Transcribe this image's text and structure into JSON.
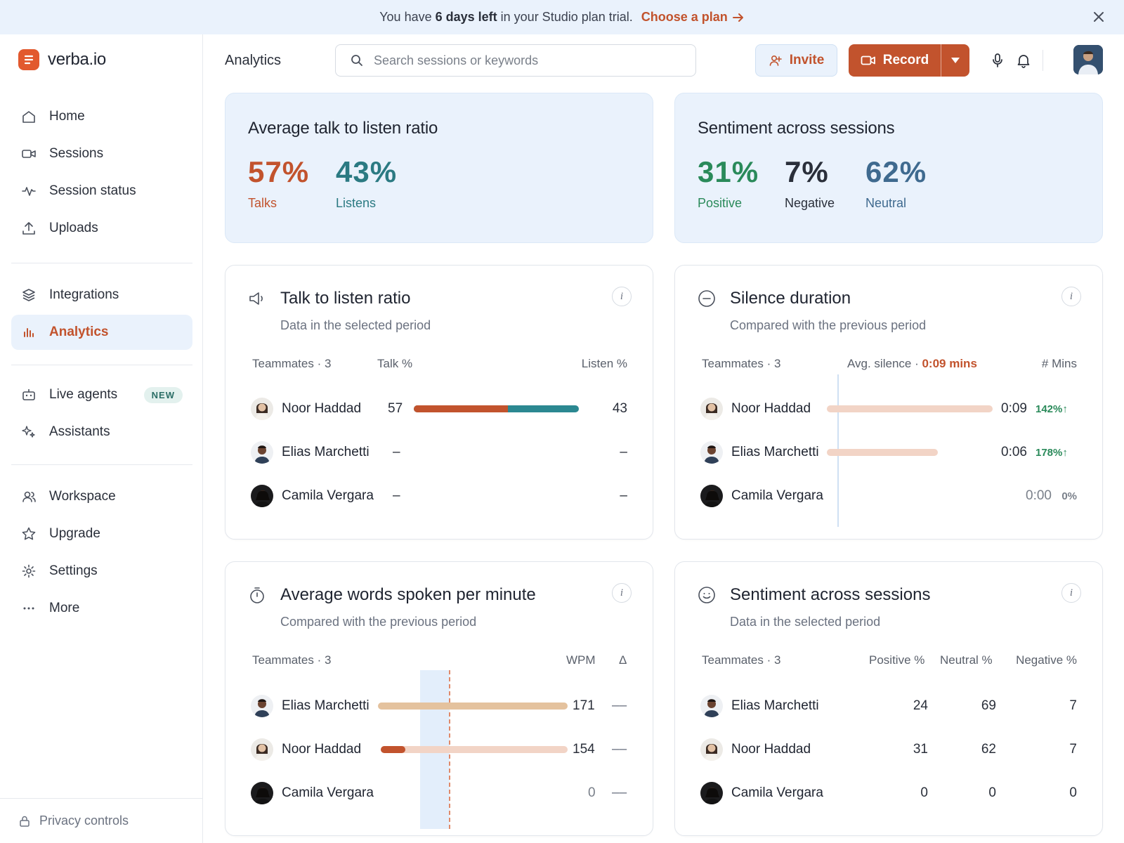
{
  "banner": {
    "pre": "You have",
    "bold": "6 days left",
    "post": "in your Studio plan trial.",
    "cta": "Choose a plan"
  },
  "app": {
    "name": "verba.io"
  },
  "sidebar": {
    "items": [
      {
        "label": "Home",
        "icon": "home-icon"
      },
      {
        "label": "Sessions",
        "icon": "video-icon"
      },
      {
        "label": "Session status",
        "icon": "activity-icon"
      },
      {
        "label": "Uploads",
        "icon": "upload-icon"
      },
      {
        "label": "Integrations",
        "icon": "layers-icon"
      },
      {
        "label": "Analytics",
        "icon": "bar-chart-icon",
        "active": true
      },
      {
        "label": "Live agents",
        "icon": "bot-icon",
        "badge": "NEW"
      },
      {
        "label": "Assistants",
        "icon": "sparkles-icon"
      },
      {
        "label": "Workspace",
        "icon": "users-icon"
      },
      {
        "label": "Upgrade",
        "icon": "star-icon"
      },
      {
        "label": "Settings",
        "icon": "gear-icon"
      },
      {
        "label": "More",
        "icon": "more-icon"
      }
    ],
    "privacy": "Privacy controls"
  },
  "header": {
    "title": "Analytics",
    "search_placeholder": "Search sessions or keywords",
    "invite": "Invite",
    "record": "Record"
  },
  "summary_talk": {
    "title": "Average talk to listen ratio",
    "talks_value": "57%",
    "talks_label": "Talks",
    "listens_value": "43%",
    "listens_label": "Listens"
  },
  "summary_sentiment": {
    "title": "Sentiment across sessions",
    "positive_value": "31%",
    "positive_label": "Positive",
    "negative_value": "7%",
    "negative_label": "Negative",
    "neutral_value": "62%",
    "neutral_label": "Neutral"
  },
  "talk_card": {
    "title": "Talk to listen ratio",
    "subtitle": "Data in the selected period",
    "col_team": "Teammates · 3",
    "col_talk": "Talk %",
    "col_listen": "Listen %",
    "rows": [
      {
        "name": "Noor Haddad",
        "talk": "57",
        "listen": "43",
        "talk_frac": 0.57
      },
      {
        "name": "Elias Marchetti",
        "talk": "–",
        "listen": "–"
      },
      {
        "name": "Camila Vergara",
        "talk": "–",
        "listen": "–"
      }
    ]
  },
  "silence_card": {
    "title": "Silence duration",
    "subtitle": "Compared with the previous period",
    "col_team": "Teammates · 3",
    "col_avg_label": "Avg. silence ·",
    "col_avg_value": "0:09 mins",
    "col_mins": "# Mins",
    "rows": [
      {
        "name": "Noor Haddad",
        "value": "0:09",
        "change": "142%↑",
        "frac": 1.0
      },
      {
        "name": "Elias Marchetti",
        "value": "0:06",
        "change": "178%↑",
        "frac": 0.67
      },
      {
        "name": "Camila Vergara",
        "value": "0:00",
        "change": "0%",
        "frac": 0
      }
    ]
  },
  "wpm_card": {
    "title": "Average words spoken per minute",
    "subtitle": "Compared with the previous period",
    "col_team": "Teammates · 3",
    "col_wpm": "WPM",
    "col_delta": "Δ",
    "rows": [
      {
        "name": "Elias Marchetti",
        "wpm": "171",
        "delta": "––"
      },
      {
        "name": "Noor Haddad",
        "wpm": "154",
        "delta": "––"
      },
      {
        "name": "Camila Vergara",
        "wpm": "0",
        "delta": "––"
      }
    ]
  },
  "sentiment_card": {
    "title": "Sentiment across sessions",
    "subtitle": "Data in the selected period",
    "col_team": "Teammates · 3",
    "col_pos": "Positive %",
    "col_neu": "Neutral %",
    "col_neg": "Negative %",
    "rows": [
      {
        "name": "Elias Marchetti",
        "pos": "24",
        "neu": "69",
        "neg": "7"
      },
      {
        "name": "Noor Haddad",
        "pos": "31",
        "neu": "62",
        "neg": "7"
      },
      {
        "name": "Camila Vergara",
        "pos": "0",
        "neu": "0",
        "neg": "0"
      }
    ]
  },
  "colors": {
    "accent": "#c2532d",
    "teal": "#2b7a82",
    "positive": "#2a8a5a",
    "banner_bg": "#eaf2fc"
  }
}
